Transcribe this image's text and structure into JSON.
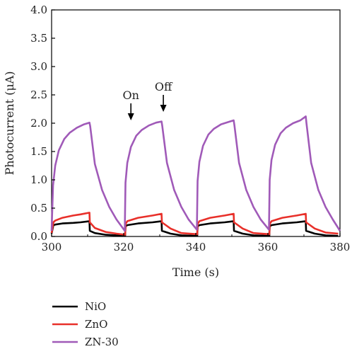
{
  "chart_data": {
    "type": "line",
    "title": "",
    "xlabel": "Time (s)",
    "ylabel": "Photocurrent (μA)",
    "xlim": [
      300,
      380
    ],
    "ylim": [
      0,
      4.0
    ],
    "xticks": [
      300,
      320,
      340,
      360,
      380
    ],
    "yticks": [
      0.0,
      0.5,
      1.0,
      1.5,
      2.0,
      2.5,
      3.0,
      3.5,
      4.0
    ],
    "xtick_labels": [
      "300",
      "320",
      "340",
      "360",
      "380"
    ],
    "ytick_labels": [
      "0.0",
      "0.5",
      "1.0",
      "1.5",
      "2.0",
      "2.5",
      "3.0",
      "3.5",
      "4.0"
    ],
    "grid": false,
    "legend_position": "below",
    "annotations": [
      {
        "text": "On",
        "x": 322,
        "arrow_tip_y": 2.05
      },
      {
        "text": "Off",
        "x": 331,
        "arrow_tip_y": 2.2
      }
    ],
    "cycles": [
      {
        "on": 300,
        "off": 310.5
      },
      {
        "on": 320.5,
        "off": 330.5
      },
      {
        "on": 340.5,
        "off": 350.5
      },
      {
        "on": 360.5,
        "off": 370.5
      }
    ],
    "series": [
      {
        "name": "NiO",
        "color": "#000000",
        "x": [
          300,
          300.5,
          301,
          303,
          306,
          308,
          310.5,
          310.6,
          312,
          315,
          318,
          320.4,
          320.5,
          321,
          324,
          328,
          330.5,
          330.6,
          333,
          336,
          340.4,
          340.5,
          341,
          344,
          348,
          350.5,
          350.6,
          353,
          356,
          360.4,
          360.5,
          361,
          364,
          368,
          370.5,
          370.6,
          373,
          376,
          379.5
        ],
        "y": [
          0.05,
          0.2,
          0.21,
          0.23,
          0.24,
          0.25,
          0.27,
          0.1,
          0.06,
          0.03,
          0.02,
          0.01,
          0.18,
          0.2,
          0.23,
          0.25,
          0.27,
          0.1,
          0.05,
          0.02,
          0.01,
          0.18,
          0.2,
          0.23,
          0.25,
          0.27,
          0.1,
          0.05,
          0.02,
          0.01,
          0.18,
          0.2,
          0.23,
          0.25,
          0.27,
          0.1,
          0.05,
          0.02,
          0.01
        ]
      },
      {
        "name": "ZnO",
        "color": "#e8302a",
        "x": [
          300,
          300.5,
          301,
          303,
          306,
          308,
          310.5,
          310.6,
          312,
          315,
          318,
          320.4,
          320.5,
          321,
          324,
          328,
          330.5,
          330.6,
          333,
          336,
          340.4,
          340.5,
          341,
          344,
          348,
          350.5,
          350.6,
          353,
          356,
          360.4,
          360.5,
          361,
          364,
          368,
          370.5,
          370.6,
          373,
          376,
          379.5
        ],
        "y": [
          0.06,
          0.25,
          0.28,
          0.33,
          0.37,
          0.39,
          0.42,
          0.25,
          0.15,
          0.08,
          0.05,
          0.03,
          0.22,
          0.27,
          0.33,
          0.37,
          0.4,
          0.25,
          0.14,
          0.06,
          0.04,
          0.22,
          0.27,
          0.33,
          0.37,
          0.4,
          0.25,
          0.14,
          0.06,
          0.04,
          0.22,
          0.27,
          0.33,
          0.37,
          0.4,
          0.25,
          0.14,
          0.07,
          0.05
        ]
      },
      {
        "name": "ZN-30",
        "color": "#a05ab8",
        "x": [
          300,
          300.4,
          301,
          302,
          303.5,
          305,
          307,
          309,
          310.5,
          310.7,
          312,
          314,
          316,
          318,
          320.3,
          320.5,
          321,
          322,
          323.5,
          325,
          327,
          329,
          330.5,
          330.7,
          332,
          334,
          336,
          338,
          340.3,
          340.5,
          341,
          342,
          343.5,
          345,
          347,
          349,
          350.5,
          350.7,
          352,
          354,
          356,
          358,
          360.3,
          360.5,
          361,
          362,
          363.5,
          365,
          367,
          369,
          370.5,
          370.7,
          372,
          374,
          376,
          378,
          380
        ],
        "y": [
          0.1,
          0.9,
          1.25,
          1.52,
          1.72,
          1.83,
          1.92,
          1.98,
          2.01,
          1.95,
          1.28,
          0.82,
          0.52,
          0.3,
          0.1,
          0.95,
          1.3,
          1.58,
          1.78,
          1.88,
          1.96,
          2.01,
          2.03,
          1.95,
          1.3,
          0.82,
          0.52,
          0.3,
          0.12,
          0.98,
          1.32,
          1.6,
          1.8,
          1.9,
          1.98,
          2.02,
          2.05,
          1.97,
          1.3,
          0.82,
          0.52,
          0.3,
          0.12,
          1.0,
          1.35,
          1.62,
          1.82,
          1.92,
          2.0,
          2.05,
          2.12,
          2.0,
          1.3,
          0.82,
          0.52,
          0.3,
          0.1
        ]
      }
    ]
  }
}
